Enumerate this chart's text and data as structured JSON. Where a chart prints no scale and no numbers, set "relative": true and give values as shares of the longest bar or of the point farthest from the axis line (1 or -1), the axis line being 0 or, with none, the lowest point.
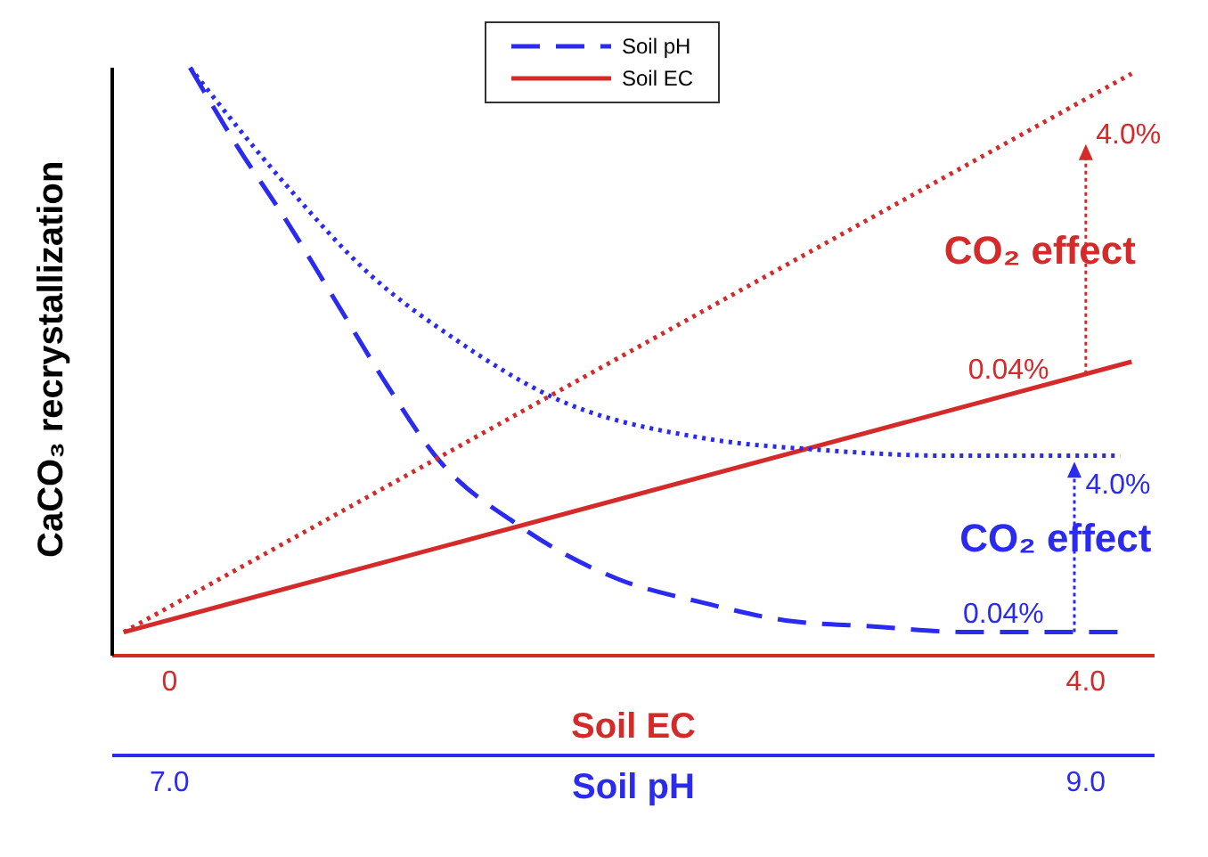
{
  "chart_data": {
    "type": "line",
    "relative": true,
    "ylabel": "CaCO₃ recrystallization",
    "xlabel": "Soil EC",
    "x2label": "Soil pH",
    "xlim": [
      -0.25,
      4.3
    ],
    "xticks": [
      0,
      {
        "value": 4,
        "label": "4.0"
      }
    ],
    "x2lim": [
      6.875,
      9.15
    ],
    "x2ticks": [
      {
        "value": 7,
        "label": "7.0"
      },
      {
        "value": 9,
        "label": "9.0"
      }
    ],
    "legend": "top",
    "marker": "none",
    "series": [
      {
        "name": "Soil pH",
        "color": "#2b2bf0",
        "line_style": "dashed",
        "x": [
          0.09,
          0.29,
          0.51,
          0.73,
          0.95,
          1.16,
          1.53,
          1.96,
          2.33,
          2.69,
          3.06,
          3.49,
          4.15
        ],
        "values": [
          1.0,
          0.87,
          0.74,
          0.6,
          0.46,
          0.34,
          0.22,
          0.13,
          0.09,
          0.06,
          0.05,
          0.04,
          0.04
        ]
      },
      {
        "name": "Soil EC",
        "color": "#d42a2a",
        "line_style": "solid",
        "x": [
          -0.2,
          4.2
        ],
        "values": [
          0.04,
          0.5
        ]
      },
      {
        "color": "#2b2bf0",
        "line_style": "dotted",
        "x": [
          0.09,
          0.51,
          0.87,
          1.24,
          1.67,
          2.33,
          2.84,
          3.42,
          4.15
        ],
        "values": [
          1.0,
          0.8,
          0.65,
          0.54,
          0.44,
          0.37,
          0.35,
          0.34,
          0.34
        ]
      },
      {
        "color": "#d42a2a",
        "line_style": "dotted",
        "x": [
          -0.2,
          4.2
        ],
        "values": [
          0.04,
          0.99
        ]
      }
    ],
    "annotations": [
      "4.0%",
      "CO₂ effect",
      "0.04%",
      "4.0%",
      "CO₂ effect",
      "0.04%"
    ]
  }
}
